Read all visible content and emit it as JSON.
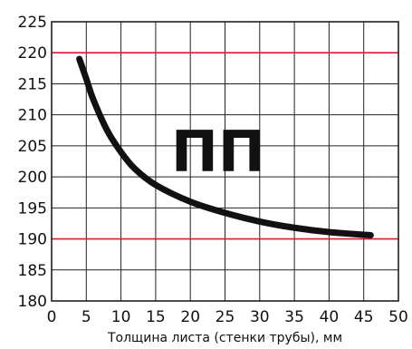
{
  "chart_data": {
    "type": "line",
    "title": "",
    "xlabel": "Толщина листа (стенки трубы),  мм",
    "ylabel": "",
    "xlim": [
      0,
      50
    ],
    "ylim": [
      180,
      225
    ],
    "x_ticks": [
      0,
      5,
      10,
      15,
      20,
      25,
      30,
      35,
      40,
      45,
      50
    ],
    "y_ticks": [
      180,
      185,
      190,
      195,
      200,
      205,
      210,
      215,
      220,
      225
    ],
    "grid": true,
    "legend": "none",
    "annotation": "ПП",
    "reference_lines": [
      {
        "axis": "y",
        "value": 220,
        "color": "#cc2233"
      },
      {
        "axis": "y",
        "value": 190,
        "color": "#cc2233"
      }
    ],
    "series": [
      {
        "color": "#111111",
        "x": [
          4,
          5,
          6,
          8,
          10,
          12,
          15,
          20,
          25,
          30,
          35,
          40,
          46
        ],
        "y": [
          219,
          215.8,
          212.5,
          207.5,
          204,
          201.3,
          198.7,
          196,
          194.2,
          192.8,
          191.8,
          191.1,
          190.6
        ]
      }
    ]
  }
}
